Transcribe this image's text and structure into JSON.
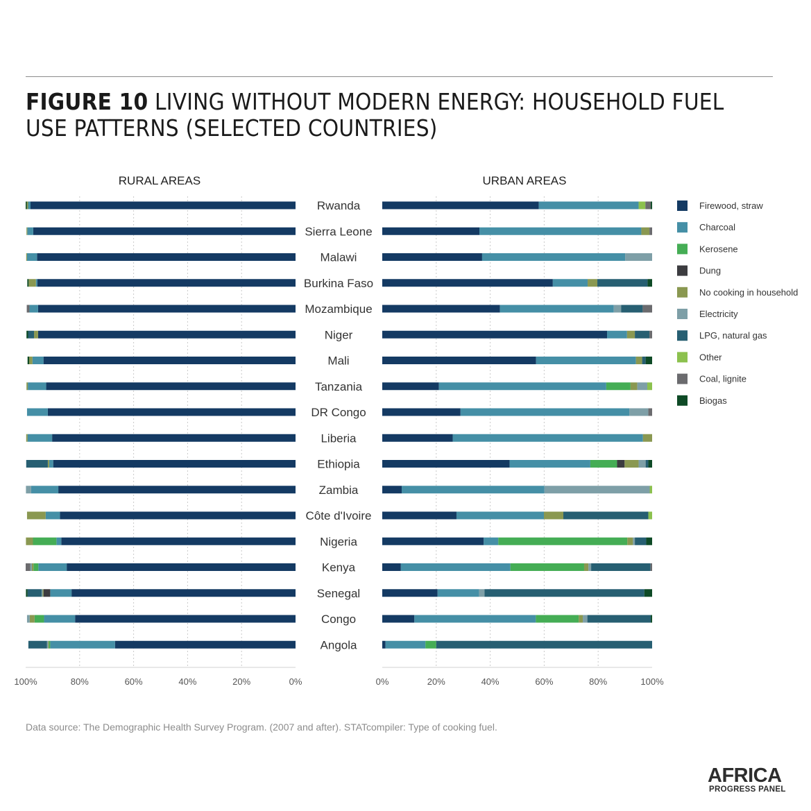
{
  "figure": {
    "label": "FIGURE 10",
    "title": "LIVING WITHOUT MODERN ENERGY: HOUSEHOLD FUEL USE PATTERNS (SELECTED COUNTRIES)"
  },
  "source_note": "Data source: The Demographic Health Survey Program. (2007 and after). STATcompiler: Type of cooking fuel.",
  "logo": {
    "line1": "AFRICA",
    "line2": "PROGRESS PANEL"
  },
  "colors": {
    "Firewood, straw": "#143a63",
    "Charcoal": "#458fa6",
    "Kerosene": "#45ad55",
    "Dung": "#3c3c40",
    "No cooking in household": "#8a9851",
    "Electricity": "#7e9fa7",
    "LPG, natural gas": "#275f72",
    "Other": "#8cc14e",
    "Coal, lignite": "#6b6b6e",
    "Biogas": "#0e4a26"
  },
  "chart_data": [
    {
      "type": "bar",
      "stacked": true,
      "orientation": "horizontal",
      "title": "RURAL AREAS",
      "xlim": [
        100,
        0
      ],
      "x_ticks": [
        "100%",
        "80%",
        "60%",
        "40%",
        "20%",
        "0%"
      ],
      "categories": [
        "Rwanda",
        "Sierra Leone",
        "Malawi",
        "Burkina Faso",
        "Mozambique",
        "Niger",
        "Mali",
        "Tanzania",
        "DR Congo",
        "Liberia",
        "Ethiopia",
        "Zambia",
        "Côte d'Ivoire",
        "Nigeria",
        "Kenya",
        "Senegal",
        "Congo",
        "Angola"
      ],
      "series": [
        {
          "name": "Firewood, straw",
          "values": [
            98.2,
            97.2,
            95.8,
            95.7,
            95.4,
            95.4,
            93.4,
            92.4,
            91.8,
            90.2,
            89.8,
            87.9,
            87.3,
            86.8,
            84.8,
            83.0,
            81.7,
            66.9
          ]
        },
        {
          "name": "Charcoal",
          "values": [
            0.9,
            2.2,
            3.7,
            0.5,
            3.2,
            0,
            4.1,
            6.8,
            7.7,
            9.1,
            1.5,
            10.1,
            5.3,
            1.8,
            10.5,
            7.9,
            11.5,
            24.0
          ]
        },
        {
          "name": "Kerosene",
          "values": [
            0,
            0,
            0,
            0,
            0,
            0,
            0,
            0,
            0,
            0,
            0,
            0,
            0,
            8.7,
            1.8,
            0,
            3.5,
            0.5
          ]
        },
        {
          "name": "Dung",
          "values": [
            0,
            0,
            0,
            0,
            0,
            0,
            0,
            0,
            0,
            0,
            0,
            0,
            0,
            0,
            0,
            2.5,
            0,
            0
          ]
        },
        {
          "name": "No cooking in household",
          "values": [
            0.5,
            0.3,
            0.3,
            2.7,
            0,
            1.5,
            1.2,
            0.5,
            0,
            0.5,
            0.5,
            0,
            6.9,
            2.6,
            0.6,
            0.3,
            1.8,
            0.3
          ]
        },
        {
          "name": "Electricity",
          "values": [
            0,
            0,
            0,
            0,
            0,
            0,
            0,
            0,
            0,
            0,
            0,
            1.9,
            0,
            0,
            0.6,
            0.4,
            1.0,
            0.4
          ]
        },
        {
          "name": "LPG, natural gas",
          "values": [
            0,
            0,
            0,
            0,
            0,
            2.2,
            0,
            0,
            0,
            0,
            8.0,
            0,
            0,
            0,
            0,
            5.2,
            0,
            6.9
          ]
        },
        {
          "name": "Other",
          "values": [
            0,
            0,
            0,
            0,
            0,
            0,
            0,
            0,
            0,
            0,
            0,
            0,
            0,
            0,
            0,
            0,
            0,
            0
          ]
        },
        {
          "name": "Coal, lignite",
          "values": [
            0,
            0,
            0,
            0,
            1.0,
            0,
            0,
            0,
            0,
            0,
            0,
            0,
            0,
            0,
            1.7,
            0,
            0,
            0
          ]
        },
        {
          "name": "Biogas",
          "values": [
            0.4,
            0,
            0,
            0.5,
            0,
            0.6,
            0.6,
            0,
            0,
            0,
            0,
            0,
            0,
            0,
            0,
            0.6,
            0,
            0
          ]
        }
      ]
    },
    {
      "type": "bar",
      "stacked": true,
      "orientation": "horizontal",
      "title": "URBAN AREAS",
      "xlim": [
        0,
        100
      ],
      "x_ticks": [
        "0%",
        "20%",
        "40%",
        "60%",
        "80%",
        "100%"
      ],
      "categories": [
        "Rwanda",
        "Sierra Leone",
        "Malawi",
        "Burkina Faso",
        "Mozambique",
        "Niger",
        "Mali",
        "Tanzania",
        "DR Congo",
        "Liberia",
        "Ethiopia",
        "Zambia",
        "Côte d'Ivoire",
        "Nigeria",
        "Kenya",
        "Senegal",
        "Congo",
        "Angola"
      ],
      "series": [
        {
          "name": "Firewood, straw",
          "values": [
            58.0,
            36.0,
            37.0,
            63.2,
            43.6,
            83.3,
            57.0,
            21.0,
            29.0,
            26.1,
            47.2,
            7.2,
            27.5,
            37.6,
            6.9,
            20.5,
            11.9,
            1.2
          ]
        },
        {
          "name": "Charcoal",
          "values": [
            37.0,
            60.0,
            53.0,
            12.9,
            42.2,
            7.4,
            37.0,
            62.0,
            62.6,
            70.5,
            29.9,
            52.9,
            32.4,
            5.4,
            40.6,
            15.4,
            45.0,
            14.8
          ]
        },
        {
          "name": "Kerosene",
          "values": [
            0,
            0,
            0,
            0,
            0,
            0,
            0,
            9.0,
            0,
            0,
            9.9,
            0,
            0,
            47.8,
            27.3,
            0,
            15.9,
            4.0
          ]
        },
        {
          "name": "Dung",
          "values": [
            0,
            0,
            0,
            0,
            0,
            0,
            0,
            0,
            0,
            0,
            2.8,
            0,
            0,
            0,
            0,
            0,
            0,
            0
          ]
        },
        {
          "name": "No cooking in household",
          "values": [
            0,
            3.0,
            0,
            3.6,
            0,
            2.9,
            2.3,
            2.5,
            0,
            3.4,
            5.2,
            0,
            7.2,
            2.1,
            1.6,
            0,
            1.5,
            0
          ]
        },
        {
          "name": "Electricity",
          "values": [
            0,
            0,
            10.0,
            0,
            2.7,
            0,
            0,
            3.7,
            7.0,
            0,
            2.6,
            39.0,
            0,
            0.7,
            1.0,
            2.0,
            1.7,
            0
          ]
        },
        {
          "name": "LPG, natural gas",
          "values": [
            0,
            0,
            0,
            18.6,
            8.0,
            5.4,
            1.3,
            0,
            0,
            0,
            1.0,
            0,
            31.5,
            4.2,
            22.0,
            59.2,
            23.5,
            80.0
          ]
        },
        {
          "name": "Other",
          "values": [
            2.5,
            0,
            0,
            0,
            0,
            0,
            0,
            1.8,
            0,
            0,
            0,
            0.9,
            1.4,
            0,
            0,
            0,
            0,
            0
          ]
        },
        {
          "name": "Coal, lignite",
          "values": [
            2.0,
            1.0,
            0,
            0,
            3.5,
            1.0,
            0,
            0,
            1.4,
            0,
            0,
            0,
            0,
            0,
            0.6,
            0,
            0,
            0
          ]
        },
        {
          "name": "Biogas",
          "values": [
            0.5,
            0,
            0,
            1.7,
            0,
            0,
            2.4,
            0,
            0,
            0,
            1.4,
            0,
            0,
            2.2,
            0,
            2.9,
            0.5,
            0
          ]
        }
      ]
    }
  ]
}
